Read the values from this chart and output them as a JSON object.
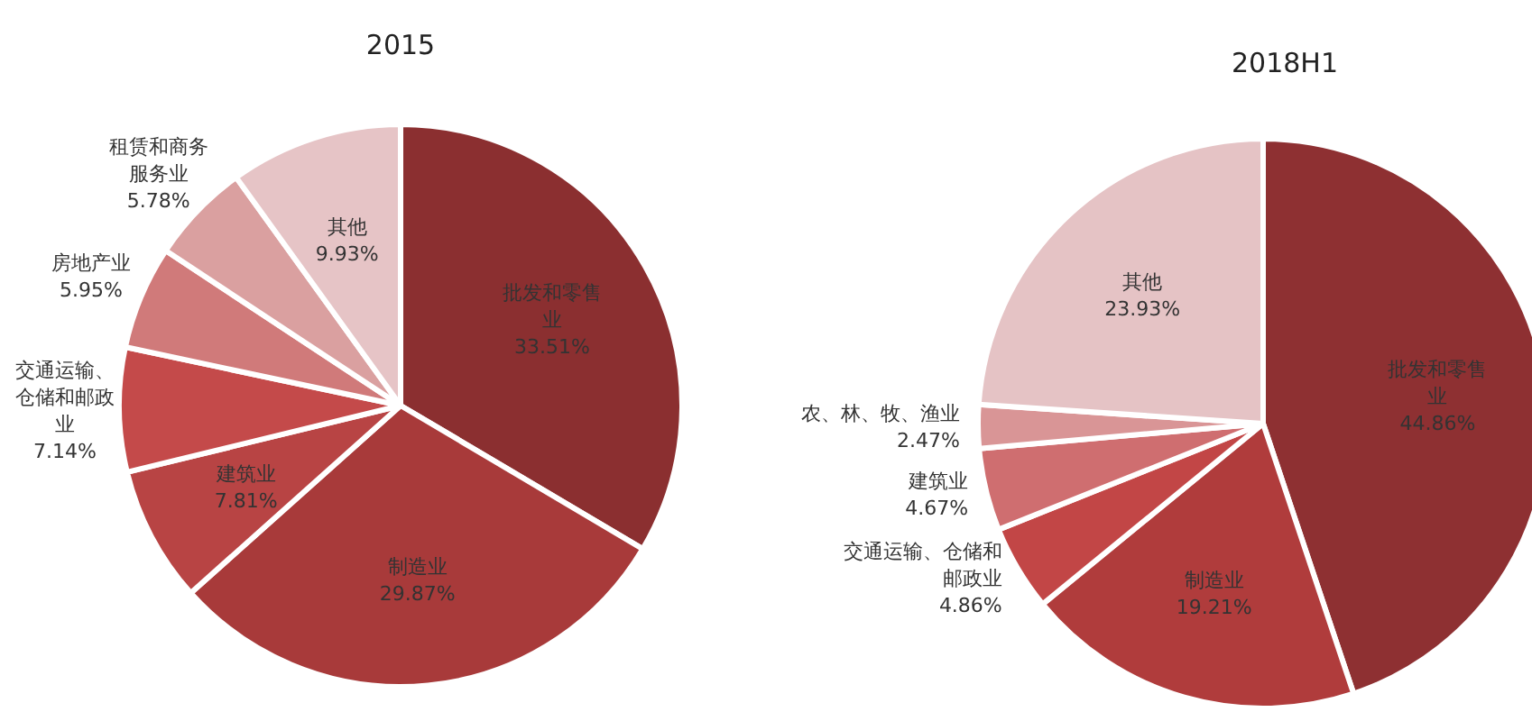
{
  "chart_data": [
    {
      "type": "pie",
      "title": "2015",
      "categories": [
        "批发和零售业",
        "制造业",
        "建筑业",
        "交通运输、仓储和邮政业",
        "房地产业",
        "租赁和商务服务业",
        "其他"
      ],
      "values": [
        33.51,
        29.87,
        7.81,
        7.14,
        5.95,
        5.78,
        9.93
      ],
      "colors": [
        "#8b2f30",
        "#a83a3a",
        "#b84444",
        "#c44a4a",
        "#d07a7a",
        "#daa0a0",
        "#e6c4c6"
      ],
      "value_labels": [
        "33.51%",
        "29.87%",
        "7.81%",
        "7.14%",
        "5.95%",
        "5.78%",
        "9.93%"
      ]
    },
    {
      "type": "pie",
      "title": "2018H1",
      "categories": [
        "批发和零售业",
        "制造业",
        "交通运输、仓储和邮政业",
        "建筑业",
        "农、林、牧、渔业",
        "其他"
      ],
      "values": [
        44.86,
        19.21,
        4.86,
        4.67,
        2.47,
        23.93
      ],
      "colors": [
        "#8e3032",
        "#b03c3c",
        "#c24646",
        "#cf6e70",
        "#d99596",
        "#e5c3c5"
      ],
      "value_labels": [
        "44.86%",
        "19.21%",
        "4.86%",
        "4.67%",
        "2.47%",
        "23.93%"
      ]
    }
  ]
}
